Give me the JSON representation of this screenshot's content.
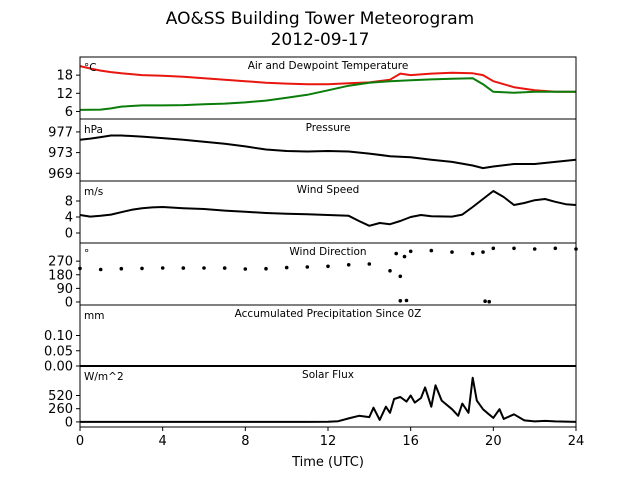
{
  "figure": {
    "title": "AO&SS Building Tower Meteorogram",
    "subtitle": "2012-09-17",
    "xlabel": "Time (UTC)"
  },
  "chart_data": [
    {
      "type": "line",
      "title": "Air and Dewpoint Temperature",
      "unit": "°C",
      "xlim": [
        0,
        24
      ],
      "ylim": [
        3.5,
        24
      ],
      "yticks": [
        6,
        12,
        18
      ],
      "grid": false,
      "series": [
        {
          "color": "#e8160e",
          "x": [
            0,
            0.5,
            1,
            1.5,
            2,
            3,
            4,
            5,
            6,
            7,
            8,
            9,
            10,
            11,
            12,
            13,
            14,
            15,
            15.5,
            16,
            17,
            18,
            19,
            19.5,
            20,
            21,
            22,
            23,
            24
          ],
          "y": [
            21,
            20.2,
            19.5,
            19,
            18.6,
            18,
            17.8,
            17.5,
            17,
            16.5,
            16,
            15.5,
            15.2,
            15,
            15,
            15.3,
            15.6,
            16.5,
            18.5,
            18,
            18.5,
            18.8,
            18.6,
            18,
            16,
            14,
            13,
            12.5,
            12.5
          ]
        },
        {
          "color": "#0a7d0a",
          "x": [
            0,
            1,
            1.5,
            2,
            3,
            4,
            5,
            6,
            7,
            8,
            9,
            10,
            11,
            12,
            13,
            14,
            15,
            16,
            17,
            18,
            19,
            19.5,
            20,
            21,
            22,
            23,
            24
          ],
          "y": [
            6.5,
            6.6,
            7,
            7.6,
            8,
            8,
            8.1,
            8.4,
            8.6,
            9,
            9.6,
            10.5,
            11.5,
            13,
            14.5,
            15.5,
            16,
            16.3,
            16.6,
            16.8,
            17,
            15,
            12.5,
            12.2,
            12.5,
            12.5,
            12.5
          ]
        }
      ]
    },
    {
      "type": "line",
      "title": "Pressure",
      "unit": "hPa",
      "xlim": [
        0,
        24
      ],
      "ylim": [
        967.5,
        979.5
      ],
      "yticks": [
        969,
        973,
        977
      ],
      "grid": false,
      "series": [
        {
          "color": "#000000",
          "x": [
            0,
            0.5,
            1,
            1.5,
            2,
            3,
            4,
            5,
            6,
            7,
            8,
            9,
            10,
            11,
            12,
            13,
            14,
            15,
            16,
            17,
            18,
            19,
            19.5,
            20,
            21,
            22,
            23,
            24
          ],
          "y": [
            975.5,
            975.7,
            976,
            976.3,
            976.3,
            976.1,
            975.8,
            975.5,
            975.1,
            974.7,
            974.2,
            973.6,
            973.3,
            973.2,
            973.3,
            973.2,
            972.8,
            972.3,
            972.1,
            971.6,
            971.2,
            970.5,
            970.0,
            970.3,
            970.8,
            970.8,
            971.2,
            971.6
          ]
        }
      ]
    },
    {
      "type": "line",
      "title": "Wind Speed",
      "unit": "m/s",
      "xlim": [
        0,
        24
      ],
      "ylim": [
        -2.5,
        13
      ],
      "yticks": [
        0,
        4,
        8
      ],
      "grid": false,
      "series": [
        {
          "color": "#000000",
          "x": [
            0,
            0.5,
            1,
            1.5,
            2,
            2.5,
            3,
            3.5,
            4,
            5,
            6,
            7,
            8,
            9,
            10,
            11,
            12,
            13,
            13.5,
            14,
            14.5,
            15,
            15.5,
            16,
            16.5,
            17,
            18,
            18.5,
            19,
            19.5,
            20,
            20.5,
            21,
            21.5,
            22,
            22.5,
            23,
            23.5,
            24
          ],
          "y": [
            4.5,
            4.1,
            4.3,
            4.6,
            5.2,
            5.8,
            6.2,
            6.4,
            6.5,
            6.2,
            6.0,
            5.6,
            5.3,
            5.0,
            4.8,
            4.7,
            4.5,
            4.3,
            3.0,
            1.8,
            2.5,
            2.2,
            3.0,
            4.0,
            4.5,
            4.2,
            4.1,
            4.6,
            6.5,
            8.5,
            10.5,
            9.0,
            7.0,
            7.5,
            8.2,
            8.5,
            7.8,
            7.2,
            7.0
          ]
        }
      ]
    },
    {
      "type": "scatter",
      "title": "Wind Direction",
      "unit": "°",
      "xlim": [
        0,
        24
      ],
      "ylim": [
        -20,
        390
      ],
      "yticks": [
        0,
        90,
        180,
        270
      ],
      "grid": false,
      "series": [
        {
          "color": "#000000",
          "x": [
            0,
            1,
            2,
            3,
            4,
            5,
            6,
            7,
            8,
            9,
            10,
            11,
            12,
            13,
            14,
            15,
            15.3,
            15.5,
            15.7,
            16,
            17,
            18,
            19,
            19.5,
            20,
            21,
            22,
            23,
            24
          ],
          "y": [
            222,
            215,
            220,
            222,
            225,
            224,
            225,
            224,
            218,
            220,
            227,
            231,
            236,
            246,
            251,
            206,
            320,
            170,
            300,
            335,
            340,
            330,
            320,
            330,
            355,
            355,
            350,
            355,
            350
          ]
        },
        {
          "color": "#000000",
          "x": [
            15.5,
            15.8,
            19.6,
            19.8
          ],
          "y": [
            8,
            10,
            5,
            2
          ]
        }
      ]
    },
    {
      "type": "line",
      "title": "Accumulated Precipitation Since 0Z",
      "unit": "mm",
      "xlim": [
        0,
        24
      ],
      "ylim": [
        0,
        0.2
      ],
      "yticks": [
        0.0,
        0.05,
        0.1
      ],
      "ytick_labels": [
        "0.00",
        "0.05",
        "0.10"
      ],
      "grid": false,
      "series": [
        {
          "color": "#000000",
          "x": [
            0,
            24
          ],
          "y": [
            0,
            0
          ]
        }
      ]
    },
    {
      "type": "line",
      "title": "Solar Flux",
      "unit": "W/m^2",
      "xlim": [
        0,
        24
      ],
      "ylim": [
        -100,
        1100
      ],
      "yticks": [
        0,
        260,
        520
      ],
      "grid": false,
      "series": [
        {
          "color": "#000000",
          "x": [
            0,
            6,
            11,
            12,
            12.5,
            13,
            13.5,
            14,
            14.2,
            14.5,
            14.8,
            15,
            15.2,
            15.5,
            15.8,
            16,
            16.2,
            16.5,
            16.7,
            17,
            17.2,
            17.5,
            18,
            18.3,
            18.5,
            18.8,
            19,
            19.2,
            19.5,
            19.7,
            20,
            20.3,
            20.5,
            21,
            21.5,
            22,
            22.5,
            23,
            24
          ],
          "y": [
            0,
            0,
            0,
            2,
            15,
            70,
            120,
            95,
            280,
            40,
            300,
            180,
            450,
            490,
            400,
            520,
            380,
            470,
            680,
            300,
            720,
            420,
            250,
            120,
            360,
            180,
            870,
            420,
            250,
            180,
            80,
            250,
            60,
            150,
            30,
            10,
            20,
            10,
            0
          ]
        }
      ]
    }
  ],
  "xaxis": {
    "ticks": [
      0,
      4,
      8,
      12,
      16,
      20,
      24
    ],
    "tick_labels": [
      "0",
      "4",
      "8",
      "12",
      "16",
      "20",
      "24"
    ]
  }
}
